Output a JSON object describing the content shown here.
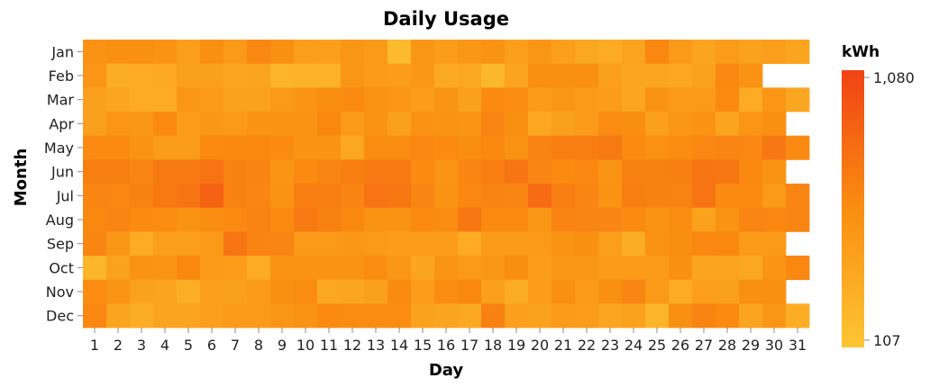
{
  "chart_data": {
    "type": "heatmap",
    "title": "Daily Usage",
    "xlabel": "Day",
    "ylabel": "Month",
    "x_categories": [
      "1",
      "2",
      "3",
      "4",
      "5",
      "6",
      "7",
      "8",
      "9",
      "10",
      "11",
      "12",
      "13",
      "14",
      "15",
      "16",
      "17",
      "18",
      "19",
      "20",
      "21",
      "22",
      "23",
      "24",
      "25",
      "26",
      "27",
      "28",
      "29",
      "30",
      "31"
    ],
    "y_categories": [
      "Jan",
      "Feb",
      "Mar",
      "Apr",
      "May",
      "Jun",
      "Jul",
      "Aug",
      "Sep",
      "Oct",
      "Nov",
      "Dec"
    ],
    "legend": {
      "title": "kWh",
      "min": 107,
      "max": 1080,
      "min_label": "107",
      "max_label": "1,080",
      "position": "right"
    },
    "color_scale": {
      "low": "#fdc533",
      "mid": "#fa8e11",
      "high": "#f14316"
    },
    "values": [
      [
        550,
        580,
        580,
        560,
        450,
        580,
        500,
        640,
        580,
        450,
        440,
        520,
        490,
        200,
        520,
        460,
        510,
        550,
        440,
        520,
        440,
        360,
        340,
        410,
        640,
        500,
        400,
        470,
        420,
        450,
        390
      ],
      [
        530,
        320,
        340,
        350,
        430,
        430,
        380,
        400,
        260,
        270,
        270,
        520,
        480,
        470,
        510,
        350,
        360,
        220,
        400,
        580,
        580,
        580,
        440,
        380,
        380,
        370,
        420,
        640,
        560,
        null,
        null
      ],
      [
        430,
        380,
        340,
        340,
        520,
        480,
        420,
        420,
        500,
        540,
        590,
        620,
        560,
        530,
        470,
        540,
        430,
        620,
        600,
        480,
        520,
        500,
        460,
        380,
        560,
        500,
        490,
        620,
        340,
        530,
        380
      ],
      [
        430,
        530,
        510,
        620,
        460,
        510,
        490,
        560,
        560,
        560,
        630,
        500,
        560,
        430,
        570,
        550,
        540,
        650,
        580,
        370,
        430,
        480,
        600,
        590,
        440,
        520,
        550,
        390,
        530,
        580,
        null
      ],
      [
        620,
        620,
        560,
        470,
        470,
        620,
        630,
        630,
        620,
        560,
        550,
        370,
        600,
        600,
        640,
        620,
        590,
        630,
        560,
        660,
        700,
        700,
        730,
        620,
        570,
        600,
        640,
        650,
        640,
        740,
        620
      ],
      [
        700,
        700,
        650,
        730,
        730,
        770,
        680,
        660,
        540,
        620,
        650,
        700,
        720,
        720,
        620,
        540,
        650,
        700,
        750,
        650,
        620,
        640,
        540,
        680,
        680,
        700,
        760,
        740,
        630,
        550,
        null
      ],
      [
        650,
        640,
        680,
        730,
        760,
        880,
        680,
        650,
        560,
        700,
        700,
        660,
        770,
        740,
        650,
        560,
        640,
        660,
        650,
        820,
        700,
        650,
        550,
        700,
        680,
        670,
        770,
        620,
        620,
        500,
        650
      ],
      [
        630,
        650,
        620,
        600,
        560,
        600,
        620,
        670,
        620,
        720,
        680,
        630,
        560,
        550,
        620,
        600,
        740,
        620,
        620,
        520,
        660,
        650,
        650,
        620,
        560,
        600,
        420,
        560,
        650,
        640,
        650
      ],
      [
        650,
        520,
        340,
        450,
        450,
        500,
        750,
        660,
        650,
        500,
        500,
        510,
        500,
        460,
        470,
        460,
        340,
        500,
        480,
        490,
        550,
        580,
        450,
        320,
        560,
        590,
        640,
        630,
        500,
        500,
        null
      ],
      [
        240,
        420,
        560,
        540,
        630,
        480,
        470,
        340,
        560,
        560,
        560,
        560,
        600,
        520,
        390,
        540,
        490,
        520,
        590,
        460,
        510,
        520,
        480,
        480,
        480,
        580,
        400,
        410,
        360,
        540,
        640
      ],
      [
        600,
        540,
        420,
        400,
        300,
        450,
        430,
        500,
        580,
        600,
        360,
        380,
        430,
        610,
        460,
        600,
        630,
        430,
        330,
        460,
        580,
        500,
        580,
        650,
        500,
        340,
        440,
        430,
        580,
        580,
        null
      ],
      [
        640,
        390,
        320,
        400,
        400,
        450,
        500,
        500,
        520,
        560,
        620,
        600,
        600,
        600,
        420,
        400,
        360,
        680,
        440,
        420,
        480,
        470,
        380,
        420,
        260,
        580,
        660,
        620,
        400,
        520,
        320
      ]
    ]
  }
}
